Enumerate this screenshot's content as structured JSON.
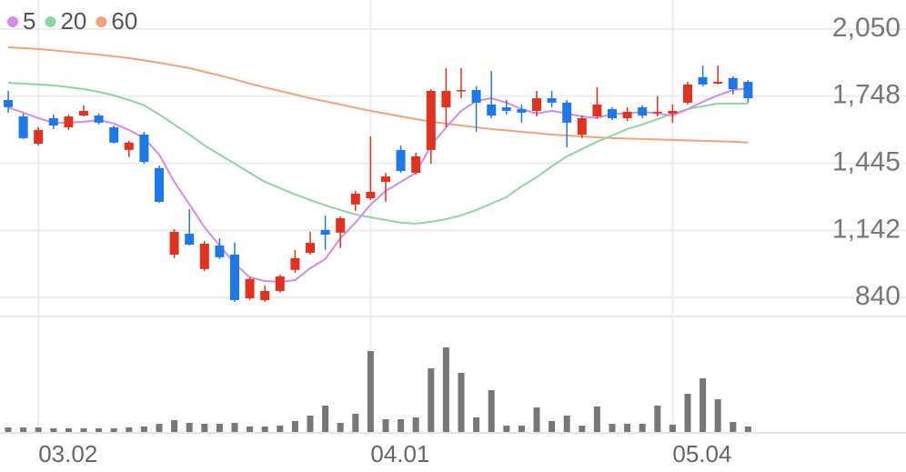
{
  "chart_data": {
    "type": "candlestick",
    "categories": [
      null,
      null,
      "03.02",
      null,
      null,
      null,
      null,
      null,
      null,
      null,
      null,
      null,
      null,
      null,
      null,
      null,
      null,
      null,
      null,
      null,
      null,
      null,
      null,
      null,
      "04.01",
      null,
      null,
      null,
      null,
      null,
      null,
      null,
      null,
      null,
      null,
      null,
      null,
      null,
      null,
      null,
      null,
      null,
      null,
      null,
      "05.04",
      null,
      null,
      null,
      null,
      null
    ],
    "open": [
      1730,
      1656,
      1533,
      1648,
      1607,
      1660,
      1660,
      1607,
      1505,
      1574,
      1423,
      1033,
      1127,
      968,
      1074,
      1033,
      836,
      828,
      869,
      964,
      1041,
      1144,
      1132,
      1259,
      1287,
      1361,
      1505,
      1402,
      1505,
      1697,
      1771,
      1775,
      1710,
      1697,
      1689,
      1681,
      1738,
      1718,
      1574,
      1656,
      1689,
      1648,
      1697,
      1673,
      1669,
      1718,
      1833,
      1804,
      1829,
      1812
    ],
    "high": [
      1771,
      1669,
      1608,
      1665,
      1665,
      1706,
      1669,
      1615,
      1546,
      1587,
      1435,
      1148,
      1238,
      1095,
      1107,
      1087,
      931,
      894,
      943,
      1054,
      1136,
      1209,
      1205,
      1320,
      1566,
      1402,
      1525,
      1492,
      1779,
      1874,
      1874,
      1792,
      1861,
      1730,
      1710,
      1771,
      1771,
      1730,
      1660,
      1788,
      1697,
      1697,
      1706,
      1747,
      1710,
      1812,
      1886,
      1886,
      1837,
      1820
    ],
    "low": [
      1673,
      1554,
      1525,
      1599,
      1595,
      1656,
      1620,
      1533,
      1472,
      1443,
      1267,
      1017,
      1074,
      959,
      1013,
      820,
      828,
      820,
      861,
      951,
      1033,
      1054,
      1062,
      1230,
      1279,
      1271,
      1402,
      1394,
      1443,
      1607,
      1738,
      1587,
      1648,
      1665,
      1628,
      1656,
      1697,
      1517,
      1558,
      1648,
      1640,
      1636,
      1648,
      1656,
      1628,
      1710,
      1792,
      1800,
      1755,
      1718
    ],
    "close": [
      1698,
      1558,
      1595,
      1615,
      1656,
      1681,
      1628,
      1538,
      1538,
      1451,
      1271,
      1136,
      1078,
      1082,
      1021,
      828,
      923,
      869,
      935,
      1017,
      1086,
      1123,
      1197,
      1308,
      1316,
      1386,
      1410,
      1476,
      1771,
      1771,
      1775,
      1718,
      1660,
      1681,
      1673,
      1738,
      1718,
      1628,
      1648,
      1710,
      1648,
      1677,
      1660,
      1677,
      1681,
      1800,
      1800,
      1812,
      1779,
      1738
    ],
    "up_color": "#e0321e",
    "down_color": "#1f78e8",
    "series": [
      {
        "name": "5",
        "color": "#d28be6",
        "values": [
          1697,
          1673,
          1648,
          1628,
          1628,
          1632,
          1640,
          1624,
          1595,
          1558,
          1484,
          1361,
          1259,
          1156,
          1074,
          992,
          931,
          914,
          910,
          918,
          972,
          1013,
          1107,
          1177,
          1259,
          1320,
          1361,
          1402,
          1525,
          1607,
          1681,
          1726,
          1738,
          1718,
          1689,
          1669,
          1681,
          1669,
          1656,
          1648,
          1669,
          1669,
          1677,
          1669,
          1660,
          1689,
          1722,
          1751,
          1775,
          1783
        ]
      },
      {
        "name": "20",
        "color": "#8ed6a0",
        "values": [
          1808,
          1804,
          1800,
          1796,
          1788,
          1779,
          1767,
          1751,
          1730,
          1706,
          1665,
          1620,
          1575,
          1525,
          1484,
          1443,
          1402,
          1361,
          1333,
          1304,
          1279,
          1255,
          1234,
          1214,
          1201,
          1189,
          1177,
          1173,
          1181,
          1193,
          1210,
          1234,
          1263,
          1292,
          1341,
          1382,
          1431,
          1476,
          1509,
          1542,
          1570,
          1599,
          1620,
          1644,
          1669,
          1689,
          1702,
          1714,
          1714,
          1714
        ]
      },
      {
        "name": "60",
        "color": "#f2a27c",
        "values": [
          1968,
          1964,
          1960,
          1954,
          1948,
          1941,
          1935,
          1927,
          1919,
          1909,
          1898,
          1886,
          1874,
          1857,
          1841,
          1823,
          1804,
          1787,
          1771,
          1755,
          1738,
          1724,
          1710,
          1695,
          1681,
          1669,
          1656,
          1644,
          1632,
          1624,
          1615,
          1607,
          1599,
          1593,
          1587,
          1581,
          1574,
          1570,
          1566,
          1562,
          1558,
          1556,
          1554,
          1552,
          1550,
          1548,
          1546,
          1544,
          1542,
          1538
        ]
      }
    ],
    "volume": {
      "color": "#777777",
      "values": [
        5,
        5,
        5,
        4,
        4,
        4,
        4,
        4,
        5,
        6,
        9,
        13,
        10,
        9,
        9,
        10,
        6,
        6,
        7,
        12,
        18,
        29,
        10,
        20,
        89,
        14,
        14,
        16,
        70,
        93,
        65,
        16,
        46,
        7,
        7,
        27,
        12,
        18,
        7,
        28,
        9,
        9,
        9,
        29,
        8,
        42,
        59,
        36,
        11,
        6
      ]
    },
    "volume_lim": [
      0,
      127
    ],
    "ylim": [
      754,
      2181
    ],
    "yticks": [
      {
        "value": 840,
        "label": "840"
      },
      {
        "value": 1142,
        "label": "1,142"
      },
      {
        "value": 1445,
        "label": "1,445"
      },
      {
        "value": 1748,
        "label": "1,748"
      },
      {
        "value": 2050,
        "label": "2,050"
      }
    ],
    "grid": true
  }
}
